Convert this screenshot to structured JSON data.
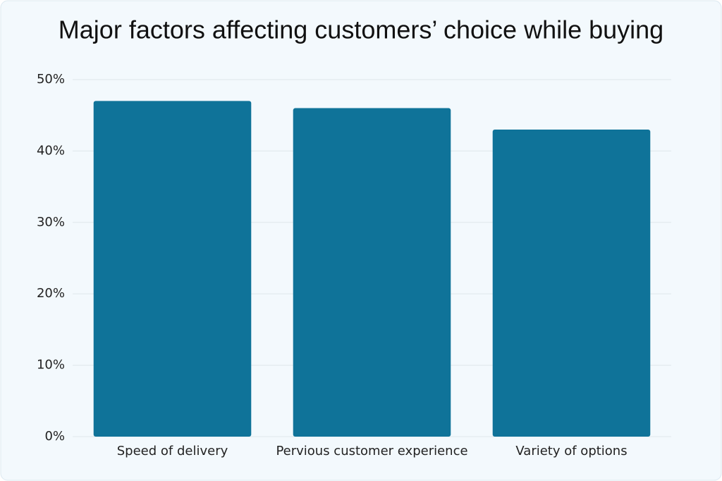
{
  "chart_data": {
    "type": "bar",
    "title": "Major factors affecting customers’ choice while buying",
    "categories": [
      "Speed of delivery",
      "Pervious customer experience",
      "Variety of options"
    ],
    "values": [
      47,
      46,
      43
    ],
    "color": "#0f7399",
    "ylim": [
      0,
      50
    ],
    "yticks": [
      {
        "value": 0,
        "label": "0%"
      },
      {
        "value": 10,
        "label": "10%"
      },
      {
        "value": 20,
        "label": "20%"
      },
      {
        "value": 30,
        "label": "30%"
      },
      {
        "value": 40,
        "label": "40%"
      },
      {
        "value": 50,
        "label": "50%"
      }
    ],
    "grid": true
  }
}
